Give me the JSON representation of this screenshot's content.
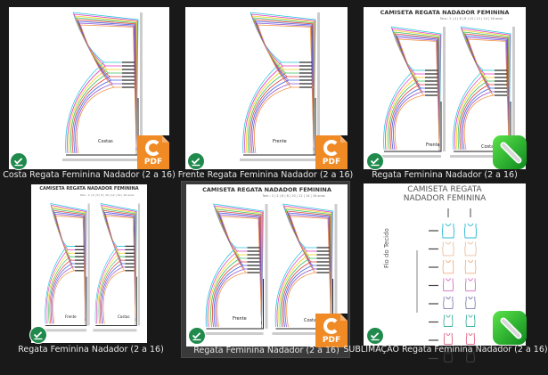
{
  "items": [
    {
      "label": "Costa Regata Feminina Nadador (2 a 16)",
      "type": "pdf",
      "selected": false,
      "piece_labels": [
        "Costas"
      ]
    },
    {
      "label": "Frente Regata Feminina Nadador (2 a 16)",
      "type": "pdf",
      "selected": false,
      "piece_labels": [
        "Frente"
      ]
    },
    {
      "label": "Regata Feminina Nadador (2 a 16)",
      "type": "app",
      "selected": false,
      "title": "CAMISETA REGATA NADADOR FEMININA",
      "sizes": "Tam.: 2 | 4 | 6 | 8 | 10 | 12 | 14 | 16 anos",
      "piece_labels": [
        "Frente",
        "Costas"
      ]
    },
    {
      "label": "Regata Feminina Nadador (2 a 16)",
      "type": "image",
      "selected": false,
      "title": "CAMISETA REGATA NADADOR FEMININA",
      "sizes": "Tam.: 2 | 4 | 6 | 8 | 10 | 12 | 14 | 16 anos",
      "piece_labels": [
        "Frente",
        "Costas"
      ]
    },
    {
      "label": "Regata Feminina Nadador (2 a 16)",
      "type": "pdf",
      "selected": true,
      "title": "CAMISETA REGATA NADADOR FEMININA",
      "sizes": "Tam.: 2 | 4 | 6 | 8 | 10 | 12 | 14 | 16 anos",
      "piece_labels": [
        "Frente",
        "Costas"
      ]
    },
    {
      "label": "SUBLIMAÇÃO Regata Feminina Nadador (2 a 16)",
      "type": "app",
      "selected": false,
      "title_line1": "CAMISETA REGATA",
      "title_line2": "NADADOR FEMININA",
      "grain_label": "Fio do Tecido"
    }
  ],
  "badges": {
    "sync_status": "synced-check-icon",
    "pdf_text": "PDF",
    "app_icon": "pencil-app-icon"
  },
  "colors": {
    "background": "#191919",
    "sync_green": "#1f8a4c",
    "pdf_orange": "#f08a24",
    "selected_bg": "#3a3a3a",
    "pattern": [
      "#29c4e0",
      "#e040c0",
      "#f0d020",
      "#40c060",
      "#e04040",
      "#4060e0",
      "#9050d0",
      "#f09040"
    ]
  }
}
